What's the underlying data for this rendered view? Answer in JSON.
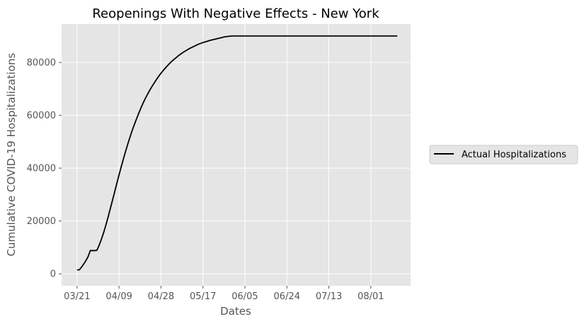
{
  "chart_data": {
    "type": "line",
    "title": "Reopenings With Negative Effects - New York",
    "xlabel": "Dates",
    "ylabel": "Cumulative COVID-19 Hospitalizations",
    "x_tick_labels": [
      "03/21",
      "04/09",
      "04/28",
      "05/17",
      "06/05",
      "06/24",
      "07/13",
      "08/01"
    ],
    "x_tick_days": [
      0,
      19,
      38,
      57,
      76,
      95,
      114,
      133
    ],
    "xlim_days": [
      -7,
      151
    ],
    "y_ticks": [
      0,
      20000,
      40000,
      60000,
      80000
    ],
    "ylim": [
      -4500,
      94500
    ],
    "grid": true,
    "legend_position": "right",
    "colors": {
      "plot_bg": "#e5e5e5",
      "grid": "#ffffff",
      "line": "#000000"
    },
    "series": [
      {
        "name": "Actual Hospitalizations",
        "color": "#000000",
        "points": [
          [
            0,
            1500
          ],
          [
            1,
            1500
          ],
          [
            2,
            2500
          ],
          [
            3,
            3700
          ],
          [
            4,
            5000
          ],
          [
            5,
            6500
          ],
          [
            6,
            8800
          ],
          [
            7,
            8800
          ],
          [
            8,
            8800
          ],
          [
            9,
            8900
          ],
          [
            10,
            10800
          ],
          [
            11,
            13000
          ],
          [
            12,
            15500
          ],
          [
            13,
            18300
          ],
          [
            14,
            21300
          ],
          [
            15,
            24500
          ],
          [
            16,
            27700
          ],
          [
            17,
            30900
          ],
          [
            18,
            34200
          ],
          [
            19,
            37400
          ],
          [
            20,
            40500
          ],
          [
            21,
            43500
          ],
          [
            22,
            46400
          ],
          [
            23,
            49200
          ],
          [
            24,
            51800
          ],
          [
            25,
            54300
          ],
          [
            26,
            56600
          ],
          [
            27,
            58800
          ],
          [
            28,
            60900
          ],
          [
            29,
            62900
          ],
          [
            30,
            64800
          ],
          [
            31,
            66500
          ],
          [
            32,
            68100
          ],
          [
            33,
            69600
          ],
          [
            34,
            71000
          ],
          [
            35,
            72300
          ],
          [
            36,
            73600
          ],
          [
            37,
            74800
          ],
          [
            38,
            75900
          ],
          [
            39,
            76900
          ],
          [
            40,
            77900
          ],
          [
            41,
            78800
          ],
          [
            42,
            79700
          ],
          [
            43,
            80500
          ],
          [
            44,
            81200
          ],
          [
            45,
            81900
          ],
          [
            46,
            82600
          ],
          [
            47,
            83200
          ],
          [
            48,
            83800
          ],
          [
            49,
            84300
          ],
          [
            50,
            84800
          ],
          [
            51,
            85300
          ],
          [
            52,
            85700
          ],
          [
            53,
            86100
          ],
          [
            54,
            86500
          ],
          [
            55,
            86900
          ],
          [
            56,
            87200
          ],
          [
            57,
            87500
          ],
          [
            58,
            87800
          ],
          [
            59,
            88000
          ],
          [
            60,
            88300
          ],
          [
            61,
            88500
          ],
          [
            62,
            88700
          ],
          [
            63,
            88900
          ],
          [
            64,
            89100
          ],
          [
            65,
            89300
          ],
          [
            66,
            89500
          ],
          [
            67,
            89700
          ],
          [
            68,
            89800
          ],
          [
            69,
            89900
          ],
          [
            70,
            90000
          ],
          [
            72,
            90000
          ],
          [
            80,
            90000
          ],
          [
            100,
            90000
          ],
          [
            120,
            90000
          ],
          [
            145,
            90000
          ]
        ]
      }
    ]
  }
}
